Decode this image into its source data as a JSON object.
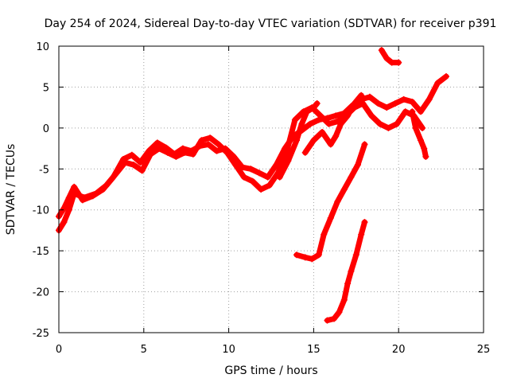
{
  "chart_data": {
    "type": "scatter",
    "title": "Day 254 of 2024, Sidereal Day-to-day VTEC variation (SDTVAR) for receiver p391",
    "xlabel": "GPS time / hours",
    "ylabel": "SDTVAR / TECUs",
    "xlim": [
      0,
      25
    ],
    "ylim": [
      -25,
      10
    ],
    "xticks": [
      "0",
      "5",
      "10",
      "15",
      "20",
      "25"
    ],
    "yticks": [
      "-25",
      "-20",
      "-15",
      "-10",
      "-5",
      "0",
      "5",
      "10"
    ],
    "grid": true,
    "legend": "none",
    "marker": "plus",
    "color": "#ff0000",
    "series": [
      {
        "x": [
          0.0,
          0.3,
          0.6,
          0.9,
          1.4,
          2.0,
          2.6,
          3.2,
          3.8,
          4.3,
          4.8,
          5.3,
          5.8,
          6.3,
          6.8,
          7.3,
          7.8,
          8.3,
          8.8,
          9.3,
          9.8,
          10.3,
          10.8,
          11.3,
          11.8,
          12.3,
          12.8,
          13.3,
          13.8,
          14.3,
          14.8,
          15.3,
          15.8,
          16.3,
          16.8,
          17.3,
          17.8,
          18.3,
          18.8,
          19.3,
          19.8,
          20.3,
          20.8,
          21.3,
          21.8,
          22.3,
          22.8
        ],
        "y": [
          -10.8,
          -9.8,
          -8.5,
          -7.2,
          -8.8,
          -8.3,
          -7.5,
          -6.0,
          -3.8,
          -3.3,
          -4.2,
          -2.8,
          -1.8,
          -2.4,
          -3.2,
          -2.5,
          -2.8,
          -2.2,
          -2.0,
          -2.8,
          -2.5,
          -3.5,
          -4.8,
          -5.0,
          -5.5,
          -6.0,
          -4.5,
          -2.5,
          -1.0,
          -0.3,
          0.5,
          1.0,
          1.2,
          1.5,
          1.8,
          2.8,
          3.5,
          3.8,
          3.0,
          2.5,
          3.0,
          3.5,
          3.2,
          2.0,
          3.5,
          5.5,
          6.3
        ]
      },
      {
        "x": [
          0.0,
          0.3,
          0.6,
          0.9,
          1.5,
          2.2,
          2.8,
          3.4,
          3.9,
          4.4,
          4.9,
          5.4,
          5.9,
          6.4,
          6.9,
          7.4,
          7.9,
          8.4,
          8.9,
          9.4,
          9.9,
          10.4,
          10.9,
          11.4,
          11.9,
          12.4,
          12.9,
          13.4,
          13.9,
          14.4,
          14.9,
          15.4,
          15.9,
          16.4,
          16.9,
          17.4,
          17.9,
          18.4,
          18.9,
          19.4,
          19.9,
          20.4,
          20.9,
          21.4
        ],
        "y": [
          -12.5,
          -11.5,
          -10.0,
          -8.0,
          -8.5,
          -8.0,
          -7.0,
          -5.5,
          -4.2,
          -4.5,
          -5.2,
          -3.2,
          -2.5,
          -3.0,
          -3.5,
          -3.0,
          -3.2,
          -1.5,
          -1.2,
          -2.0,
          -3.0,
          -4.5,
          -6.0,
          -6.5,
          -7.5,
          -7.0,
          -5.5,
          -3.0,
          1.0,
          2.0,
          2.5,
          1.5,
          0.5,
          0.8,
          1.5,
          2.5,
          3.0,
          1.5,
          0.5,
          0.0,
          0.5,
          2.0,
          1.5,
          0.0
        ]
      },
      {
        "x": [
          13.0,
          13.5,
          14.0,
          14.3,
          14.6,
          15.0,
          15.2
        ],
        "y": [
          -6.0,
          -4.0,
          -1.5,
          0.5,
          2.0,
          2.5,
          3.0
        ]
      },
      {
        "x": [
          14.5,
          15.0,
          15.5,
          16.0,
          16.3,
          16.6,
          17.0,
          17.4,
          17.8
        ],
        "y": [
          -3.0,
          -1.5,
          -0.5,
          -2.0,
          -1.0,
          0.5,
          1.5,
          3.0,
          4.0
        ]
      },
      {
        "x": [
          14.0,
          14.5,
          14.9,
          15.3,
          15.6,
          16.0,
          16.4,
          16.8,
          17.2,
          17.6,
          18.0
        ],
        "y": [
          -15.5,
          -15.8,
          -16.0,
          -15.5,
          -13.0,
          -11.0,
          -9.0,
          -7.5,
          -6.0,
          -4.5,
          -2.0
        ]
      },
      {
        "x": [
          15.8,
          16.2,
          16.5,
          16.8,
          17.0,
          17.2,
          17.5,
          17.8,
          18.0
        ],
        "y": [
          -23.5,
          -23.3,
          -22.5,
          -21.0,
          -19.0,
          -17.5,
          -15.5,
          -13.0,
          -11.5
        ]
      },
      {
        "x": [
          20.8,
          21.0,
          21.3,
          21.5,
          21.6
        ],
        "y": [
          2.0,
          0.0,
          -1.5,
          -2.5,
          -3.5
        ]
      },
      {
        "x": [
          19.0,
          19.3,
          19.6,
          20.0
        ],
        "y": [
          9.5,
          8.5,
          8.0,
          8.0
        ]
      }
    ]
  }
}
